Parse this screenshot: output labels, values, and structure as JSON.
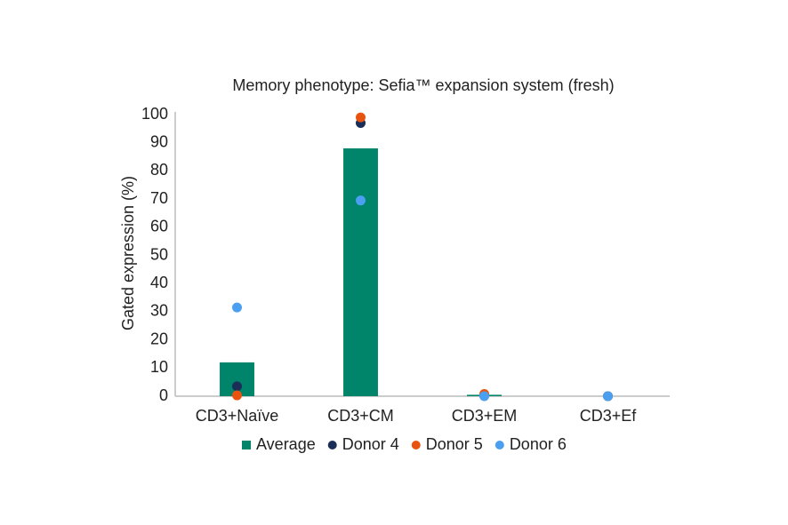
{
  "chart_data": {
    "type": "bar",
    "title": "Memory phenotype: Sefia™ expansion system (fresh)",
    "y_label": "Gated expression (%)",
    "categories": [
      "CD3+Naïve",
      "CD3+CM",
      "CD3+EM",
      "CD3+Ef"
    ],
    "series": [
      {
        "name": "Average",
        "type": "bar",
        "color": "#00856a",
        "values": [
          12,
          88,
          0.5,
          0
        ]
      },
      {
        "name": "Donor 4",
        "type": "scatter",
        "color": "#1a2e57",
        "values": [
          3.5,
          97,
          0.3,
          0
        ]
      },
      {
        "name": "Donor 5",
        "type": "scatter",
        "color": "#e8540f",
        "values": [
          0.3,
          99,
          0.8,
          0
        ]
      },
      {
        "name": "Donor 6",
        "type": "scatter",
        "color": "#4a9ff0",
        "values": [
          31.5,
          69.5,
          0,
          0
        ]
      }
    ],
    "ylim": [
      0,
      100
    ],
    "yticks": [
      0,
      10,
      20,
      30,
      40,
      50,
      60,
      70,
      80,
      90,
      100
    ],
    "grid": false,
    "legend": "bottom"
  }
}
